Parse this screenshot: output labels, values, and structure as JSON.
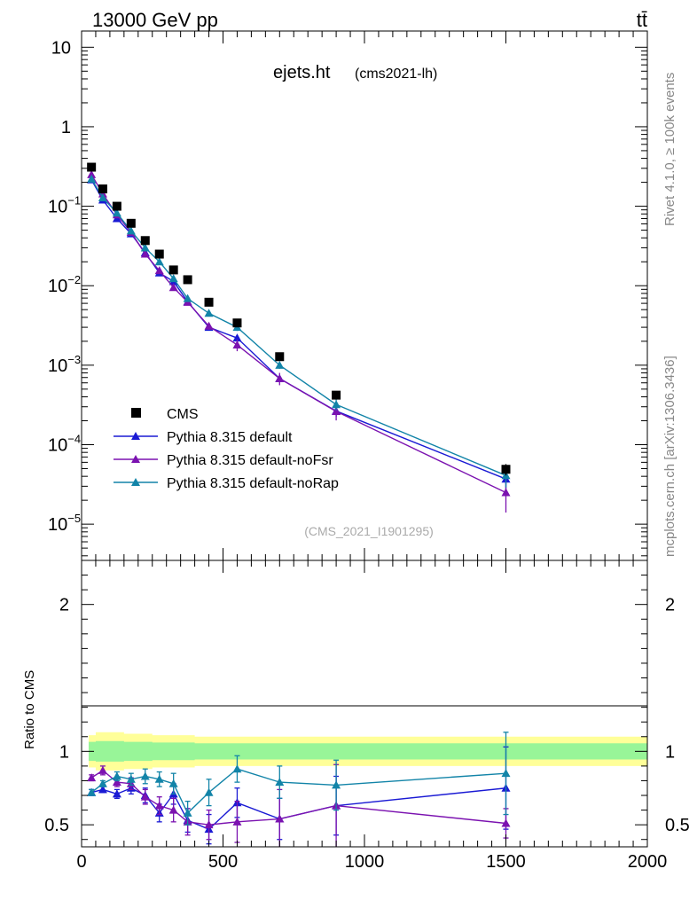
{
  "header": {
    "left_title": "13000 GeV pp",
    "right_title": "tt̄"
  },
  "side_labels": {
    "rivet": "Rivet 4.1.0, ≥ 100k events",
    "mcplots": "mcplots.cern.ch [arXiv:1306.3436]"
  },
  "colors": {
    "data": "#000000",
    "default": "#1a1ad4",
    "noFsr": "#7b12b0",
    "noRap": "#1284a8",
    "band_inner": "#98f598",
    "band_outer": "#ffff99"
  },
  "chart_data": [
    {
      "type": "line",
      "title": "ejets.ht",
      "subtitle": "(cms2021-lh)",
      "watermark": "(CMS_2021_I1901295)",
      "yscale": "log",
      "xlim": [
        0,
        2000
      ],
      "ylim": [
        3.5e-06,
        16
      ],
      "y_ticks": [
        {
          "value": 10,
          "label": "10"
        },
        {
          "value": 1,
          "label": "1"
        },
        {
          "value": 0.1,
          "label": "10",
          "exp": "−1"
        },
        {
          "value": 0.01,
          "label": "10",
          "exp": "−2"
        },
        {
          "value": 0.001,
          "label": "10",
          "exp": "−3"
        },
        {
          "value": 0.0001,
          "label": "10",
          "exp": "−4"
        },
        {
          "value": 1e-05,
          "label": "10",
          "exp": "−5"
        }
      ],
      "legend": {
        "position": "bottom-left",
        "entries": [
          {
            "key": "data",
            "label": "CMS"
          },
          {
            "key": "default",
            "label": "Pythia 8.315 default"
          },
          {
            "key": "noFsr",
            "label": "Pythia 8.315 default-noFsr"
          },
          {
            "key": "noRap",
            "label": "Pythia 8.315 default-noRap"
          }
        ]
      },
      "x": [
        35,
        75,
        125,
        175,
        225,
        275,
        325,
        375,
        450,
        550,
        700,
        900,
        1500
      ],
      "data": {
        "name": "CMS",
        "values": [
          0.31,
          0.165,
          0.1,
          0.061,
          0.037,
          0.025,
          0.0158,
          0.0119,
          0.0062,
          0.0034,
          0.00128,
          0.00042,
          4.9e-05
        ],
        "err": [
          0.02,
          0.01,
          0.006,
          0.004,
          0.002,
          0.0015,
          0.001,
          0.0008,
          0.0004,
          0.0002,
          8e-05,
          4e-05,
          8e-06
        ]
      },
      "series": [
        {
          "key": "default",
          "name": "Pythia 8.315 default",
          "values": [
            0.215,
            0.12,
            0.07,
            0.045,
            0.026,
            0.0145,
            0.0113,
            0.0063,
            0.003,
            0.0022,
            0.00068,
            0.000265,
            3.7e-05
          ],
          "err": [
            0.004,
            0.003,
            0.002,
            0.0015,
            0.001,
            0.0007,
            0.0006,
            0.0004,
            0.0002,
            0.0002,
            7e-05,
            4e-05,
            1e-05
          ]
        },
        {
          "key": "noFsr",
          "name": "Pythia 8.315 default-noFsr",
          "values": [
            0.25,
            0.143,
            0.078,
            0.047,
            0.025,
            0.0155,
            0.0095,
            0.0062,
            0.0031,
            0.0018,
            0.00068,
            0.000262,
            2.5e-05
          ],
          "err": [
            0.005,
            0.003,
            0.002,
            0.0015,
            0.001,
            0.0008,
            0.0006,
            0.0005,
            0.0003,
            0.0003,
            0.00012,
            6e-05,
            1.1e-05
          ]
        },
        {
          "key": "noRap",
          "name": "Pythia 8.315 default-noRap",
          "values": [
            0.22,
            0.128,
            0.082,
            0.049,
            0.03,
            0.02,
            0.0123,
            0.0069,
            0.0045,
            0.003,
            0.001,
            0.00032,
            4.1e-05
          ],
          "err": [
            0.005,
            0.003,
            0.002,
            0.0015,
            0.001,
            0.0008,
            0.0006,
            0.0005,
            0.0003,
            0.0003,
            0.0001,
            5e-05,
            1.2e-05
          ]
        }
      ]
    },
    {
      "type": "line",
      "ylabel": "Ratio to CMS",
      "xlim": [
        0,
        2000
      ],
      "ylim": [
        0.35,
        2.3
      ],
      "x_ticks": [
        0,
        500,
        1000,
        1500,
        2000
      ],
      "y_ticks": [
        0.5,
        1,
        2
      ],
      "x": [
        35,
        75,
        125,
        175,
        225,
        275,
        325,
        375,
        450,
        550,
        700,
        900,
        1500
      ],
      "band": {
        "x": [
          25,
          50,
          100,
          150,
          200,
          250,
          300,
          350,
          400,
          500,
          600,
          800,
          1000,
          2000
        ],
        "inner": [
          0.065,
          0.07,
          0.07,
          0.065,
          0.065,
          0.06,
          0.06,
          0.06,
          0.055,
          0.055,
          0.055,
          0.055,
          0.055
        ],
        "outer": [
          0.11,
          0.13,
          0.13,
          0.12,
          0.12,
          0.11,
          0.11,
          0.11,
          0.1,
          0.1,
          0.1,
          0.1,
          0.1
        ]
      },
      "series": [
        {
          "key": "default",
          "name": "Pythia 8.315 default",
          "values": [
            0.72,
            0.74,
            0.71,
            0.75,
            0.7,
            0.58,
            0.71,
            0.53,
            0.47,
            0.65,
            0.54,
            0.63,
            0.75
          ],
          "err": [
            0.02,
            0.02,
            0.03,
            0.04,
            0.05,
            0.06,
            0.07,
            0.08,
            0.1,
            0.1,
            0.14,
            0.2,
            0.28
          ]
        },
        {
          "key": "noFsr",
          "name": "Pythia 8.315 default-noFsr",
          "values": [
            0.82,
            0.87,
            0.79,
            0.78,
            0.69,
            0.63,
            0.6,
            0.52,
            0.5,
            0.52,
            0.54,
            0.63,
            0.51
          ],
          "err": [
            0.02,
            0.03,
            0.03,
            0.04,
            0.05,
            0.06,
            0.08,
            0.09,
            0.1,
            0.14,
            0.2,
            0.28,
            0.1
          ]
        },
        {
          "key": "noRap",
          "name": "Pythia 8.315 default-noRap",
          "values": [
            0.72,
            0.78,
            0.83,
            0.81,
            0.83,
            0.81,
            0.78,
            0.58,
            0.72,
            0.88,
            0.79,
            0.77,
            0.85
          ],
          "err": [
            0.02,
            0.02,
            0.03,
            0.04,
            0.05,
            0.05,
            0.07,
            0.08,
            0.09,
            0.09,
            0.11,
            0.17,
            0.28
          ]
        }
      ]
    }
  ]
}
